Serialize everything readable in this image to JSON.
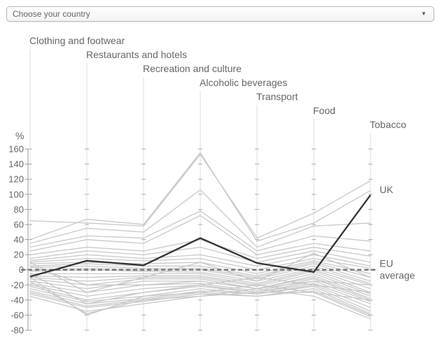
{
  "country_selector": {
    "placeholder": "Choose your country",
    "arrow_icon": "triangle-down-icon"
  },
  "chart_data": {
    "type": "line",
    "layout": "parallel-coordinates",
    "title": "",
    "ylabel": "%",
    "ylim": [
      -80,
      160
    ],
    "yticks": [
      -80,
      -60,
      -40,
      -20,
      0,
      20,
      40,
      60,
      80,
      100,
      120,
      140,
      160
    ],
    "categories": [
      "Clothing and footwear",
      "Restaurants and hotels",
      "Recreation and culture",
      "Alcoholic beverages",
      "Transport",
      "Food",
      "Tobacco"
    ],
    "grid": false,
    "colors": {
      "highlight": "#333333",
      "background_lines": "#c8c8c8",
      "reference": "#777777",
      "axis": "#dddddd",
      "text": "#666666"
    },
    "highlight": {
      "name": "UK",
      "values": [
        -9,
        12,
        6,
        42,
        9,
        -3,
        99
      ]
    },
    "reference": {
      "name": "EU average",
      "label_lines": [
        "EU",
        "average"
      ],
      "value": 0
    },
    "countries": [
      [
        65,
        62,
        58,
        153,
        42,
        75,
        118
      ],
      [
        40,
        67,
        60,
        155,
        38,
        62,
        105
      ],
      [
        35,
        55,
        50,
        106,
        30,
        58,
        62
      ],
      [
        30,
        45,
        42,
        78,
        25,
        45,
        38
      ],
      [
        25,
        40,
        35,
        72,
        20,
        35,
        25
      ],
      [
        20,
        30,
        25,
        40,
        15,
        30,
        18
      ],
      [
        15,
        25,
        20,
        30,
        10,
        25,
        10
      ],
      [
        12,
        20,
        15,
        20,
        5,
        20,
        5
      ],
      [
        10,
        15,
        12,
        15,
        0,
        15,
        2
      ],
      [
        8,
        10,
        8,
        10,
        -5,
        12,
        -5
      ],
      [
        5,
        8,
        5,
        5,
        -8,
        10,
        -10
      ],
      [
        3,
        5,
        2,
        2,
        -10,
        8,
        -15
      ],
      [
        0,
        2,
        0,
        0,
        -12,
        5,
        -18
      ],
      [
        -2,
        0,
        -2,
        -3,
        -15,
        2,
        -20
      ],
      [
        -5,
        -5,
        -5,
        -5,
        -18,
        0,
        -25
      ],
      [
        -8,
        -10,
        -8,
        -8,
        -20,
        -2,
        -30
      ],
      [
        -10,
        -15,
        -10,
        -10,
        -22,
        -5,
        -32
      ],
      [
        -12,
        -20,
        -12,
        -12,
        -25,
        -8,
        -35
      ],
      [
        -15,
        -25,
        -15,
        -15,
        -25,
        -10,
        -38
      ],
      [
        -18,
        -30,
        -20,
        -18,
        -28,
        -12,
        -40
      ],
      [
        -20,
        -35,
        -25,
        -20,
        -30,
        -15,
        -42
      ],
      [
        -22,
        -40,
        -30,
        -22,
        -30,
        -18,
        -45
      ],
      [
        -25,
        -42,
        -35,
        -25,
        -32,
        -20,
        -50
      ],
      [
        -28,
        -45,
        -38,
        -28,
        -32,
        -22,
        -55
      ],
      [
        -30,
        -48,
        -40,
        -30,
        -35,
        -25,
        -58
      ],
      [
        -32,
        -50,
        -42,
        -32,
        -35,
        -28,
        -60
      ],
      [
        -35,
        -55,
        -45,
        -35,
        -30,
        -30,
        -62
      ],
      [
        -15,
        -58,
        -40,
        -35,
        -25,
        -35,
        -65
      ],
      [
        -10,
        -60,
        -35,
        -30,
        -20,
        -30,
        -40
      ],
      [
        -5,
        -45,
        -30,
        -20,
        -10,
        -20,
        -30
      ],
      [
        5,
        -20,
        -20,
        -15,
        -25,
        -15,
        -20
      ],
      [
        10,
        -30,
        -10,
        10,
        -15,
        22,
        -10
      ]
    ]
  }
}
